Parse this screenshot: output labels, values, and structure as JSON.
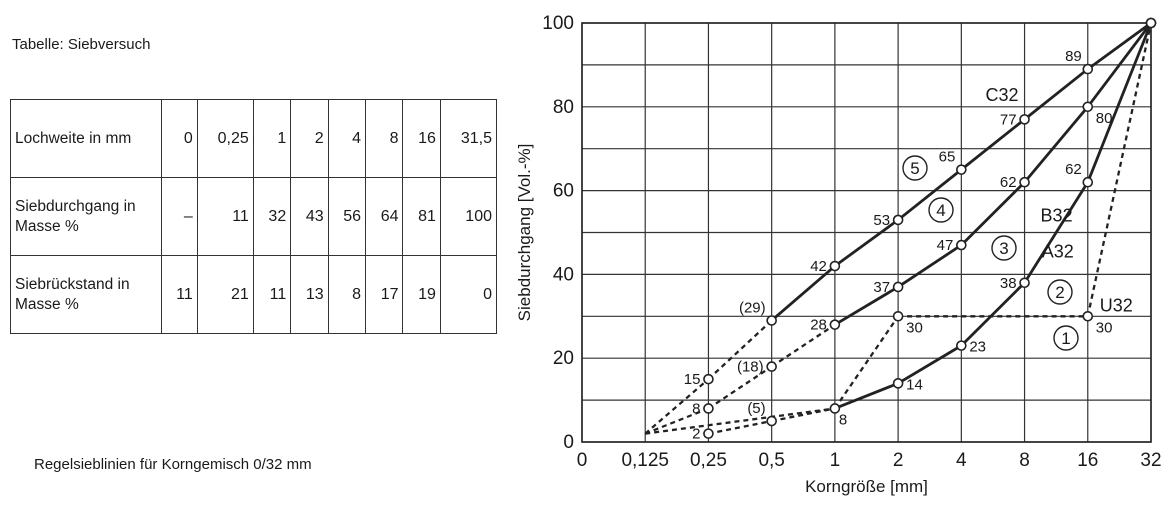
{
  "table_caption": "Tabelle: Siebversuch",
  "chart_caption": "Regelsieblinien für Korngemisch 0/32 mm",
  "table": {
    "rows": [
      {
        "label": "Lochweite in mm",
        "cells": [
          "0",
          "0,25",
          "1",
          "2",
          "4",
          "8",
          "16",
          "31,5"
        ]
      },
      {
        "label": "Siebdurchgang in Masse %",
        "cells": [
          "–",
          "11",
          "32",
          "43",
          "56",
          "64",
          "81",
          "100"
        ]
      },
      {
        "label": "Siebrückstand in Masse %",
        "cells": [
          "11",
          "21",
          "11",
          "13",
          "8",
          "17",
          "19",
          "0"
        ]
      }
    ]
  },
  "chart_data": {
    "type": "line",
    "xlabel": "Korngröße [mm]",
    "ylabel": "Siebdurchgang [Vol.-%]",
    "x_ticks": [
      "0",
      "0,125",
      "0,25",
      "0,5",
      "1",
      "2",
      "4",
      "8",
      "16",
      "32"
    ],
    "y_ticks": [
      "0",
      "20",
      "40",
      "60",
      "80",
      "100"
    ],
    "ylim": [
      0,
      100
    ],
    "grid": true,
    "series": [
      {
        "name": "C32",
        "style": "solid",
        "points": [
          [
            "0,25",
            15
          ],
          [
            "0,5",
            29
          ],
          [
            "1",
            42
          ],
          [
            "2",
            53
          ],
          [
            "4",
            65
          ],
          [
            "8",
            77
          ],
          [
            "16",
            89
          ],
          [
            "32",
            100
          ]
        ],
        "dashed_until": "0,5"
      },
      {
        "name": "B32",
        "style": "solid",
        "points": [
          [
            "0,25",
            8
          ],
          [
            "0,5",
            18
          ],
          [
            "1",
            28
          ],
          [
            "2",
            37
          ],
          [
            "4",
            47
          ],
          [
            "8",
            62
          ],
          [
            "16",
            80
          ],
          [
            "32",
            100
          ]
        ],
        "dashed_until": "1"
      },
      {
        "name": "A32",
        "style": "solid",
        "points": [
          [
            "0,25",
            2
          ],
          [
            "0,5",
            5
          ],
          [
            "1",
            8
          ],
          [
            "2",
            14
          ],
          [
            "4",
            23
          ],
          [
            "8",
            38
          ],
          [
            "16",
            62
          ],
          [
            "32",
            100
          ]
        ],
        "dashed_until": "1"
      },
      {
        "name": "U32",
        "style": "dashed",
        "points": [
          [
            "0,125",
            2
          ],
          [
            "1",
            8
          ],
          [
            "2",
            30
          ],
          [
            "4",
            30
          ],
          [
            "8",
            30
          ],
          [
            "16",
            30
          ],
          [
            "32",
            100
          ]
        ]
      }
    ],
    "lower_extensions": [
      {
        "from": [
          "0,125",
          2
        ],
        "to": [
          "0,25",
          15
        ]
      },
      {
        "from": [
          "0,125",
          2
        ],
        "to": [
          "0,25",
          8
        ]
      }
    ],
    "labels": [
      {
        "text": "15",
        "x": "0,25",
        "y": 15,
        "pos": "left"
      },
      {
        "text": "8",
        "x": "0,25",
        "y": 8,
        "pos": "left"
      },
      {
        "text": "2",
        "x": "0,25",
        "y": 2,
        "pos": "left"
      },
      {
        "text": "(29)",
        "x": "0,5",
        "y": 29,
        "pos": "upleft"
      },
      {
        "text": "(18)",
        "x": "0,5",
        "y": 18,
        "pos": "left"
      },
      {
        "text": "(5)",
        "x": "0,5",
        "y": 5,
        "pos": "upleft"
      },
      {
        "text": "42",
        "x": "1",
        "y": 42,
        "pos": "left"
      },
      {
        "text": "28",
        "x": "1",
        "y": 28,
        "pos": "left"
      },
      {
        "text": "8",
        "x": "1",
        "y": 8,
        "pos": "below"
      },
      {
        "text": "53",
        "x": "2",
        "y": 53,
        "pos": "left"
      },
      {
        "text": "37",
        "x": "2",
        "y": 37,
        "pos": "left"
      },
      {
        "text": "30",
        "x": "2",
        "y": 30,
        "pos": "belowright"
      },
      {
        "text": "14",
        "x": "2",
        "y": 14,
        "pos": "right"
      },
      {
        "text": "65",
        "x": "4",
        "y": 65,
        "pos": "upleft"
      },
      {
        "text": "47",
        "x": "4",
        "y": 47,
        "pos": "left"
      },
      {
        "text": "23",
        "x": "4",
        "y": 23,
        "pos": "right"
      },
      {
        "text": "77",
        "x": "8",
        "y": 77,
        "pos": "left"
      },
      {
        "text": "62",
        "x": "8",
        "y": 62,
        "pos": "left"
      },
      {
        "text": "38",
        "x": "8",
        "y": 38,
        "pos": "left"
      },
      {
        "text": "89",
        "x": "16",
        "y": 89,
        "pos": "upleft"
      },
      {
        "text": "80",
        "x": "16",
        "y": 80,
        "pos": "belowright"
      },
      {
        "text": "62",
        "x": "16",
        "y": 62,
        "pos": "upleft"
      },
      {
        "text": "30",
        "x": "16",
        "y": 30,
        "pos": "belowright"
      }
    ],
    "curve_names": [
      {
        "text": "C32",
        "x": "8",
        "y": 80
      },
      {
        "text": "B32",
        "x": "8",
        "y": 55
      },
      {
        "text": "A32",
        "x": "16",
        "y": 44
      },
      {
        "text": "U32",
        "x": "16",
        "y": 34
      }
    ],
    "zones": [
      "1",
      "2",
      "3",
      "4",
      "5"
    ]
  }
}
